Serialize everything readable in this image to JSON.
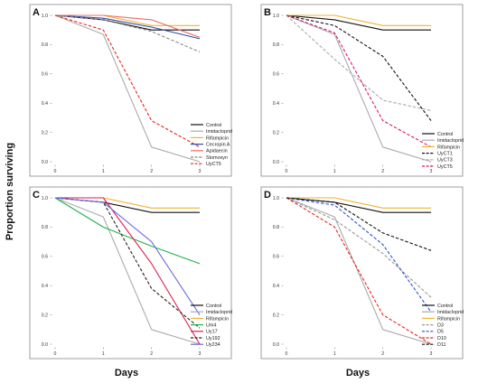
{
  "ylabel": "Proportion surviving",
  "xlabel": "Days",
  "chart_data": [
    {
      "panel": "A",
      "type": "line",
      "x": [
        0,
        1,
        2,
        3
      ],
      "xticks": [
        "0",
        "1",
        "2",
        "3"
      ],
      "yticks": [
        "0.0",
        "0.2",
        "0.4",
        "0.6",
        "0.8",
        "1.0"
      ],
      "ylim": [
        0,
        1.0
      ],
      "series": [
        {
          "name": "Control",
          "color": "#111111",
          "dash": "solid",
          "values": [
            1.0,
            0.97,
            0.9,
            0.9
          ]
        },
        {
          "name": "Imidacloprid",
          "color": "#aaaaaa",
          "dash": "solid",
          "values": [
            1.0,
            0.87,
            0.1,
            0.0
          ]
        },
        {
          "name": "Rifampicin",
          "color": "#f2b232",
          "dash": "solid",
          "values": [
            1.0,
            1.0,
            0.93,
            0.93
          ]
        },
        {
          "name": "Cecropin A",
          "color": "#2c4da8",
          "dash": "solid",
          "values": [
            1.0,
            0.98,
            0.92,
            0.84
          ]
        },
        {
          "name": "Apidaecin",
          "color": "#f06a6a",
          "dash": "solid",
          "values": [
            1.0,
            1.0,
            0.97,
            0.85
          ]
        },
        {
          "name": "Stomoxyn",
          "color": "#888888",
          "dash": "dashed",
          "values": [
            1.0,
            0.97,
            0.89,
            0.75
          ]
        },
        {
          "name": "UyCT5",
          "color": "#e8261e",
          "dash": "dashed",
          "values": [
            1.0,
            0.9,
            0.28,
            0.1
          ]
        }
      ]
    },
    {
      "panel": "B",
      "type": "line",
      "x": [
        0,
        1,
        2,
        3
      ],
      "xticks": [
        "0",
        "1",
        "2",
        "3"
      ],
      "yticks": [
        "0.0",
        "0.2",
        "0.4",
        "0.6",
        "0.8",
        "1.0"
      ],
      "ylim": [
        0,
        1.0
      ],
      "series": [
        {
          "name": "Control",
          "color": "#111111",
          "dash": "solid",
          "values": [
            1.0,
            0.97,
            0.9,
            0.9
          ]
        },
        {
          "name": "Imidacloprid",
          "color": "#aaaaaa",
          "dash": "solid",
          "values": [
            1.0,
            0.87,
            0.1,
            0.0
          ]
        },
        {
          "name": "Rifampicin",
          "color": "#f2b232",
          "dash": "solid",
          "values": [
            1.0,
            1.0,
            0.93,
            0.93
          ]
        },
        {
          "name": "UyCT1",
          "color": "#111111",
          "dash": "dashed",
          "values": [
            1.0,
            0.93,
            0.72,
            0.28
          ]
        },
        {
          "name": "UyCT3",
          "color": "#aaaaaa",
          "dash": "dashed",
          "values": [
            1.0,
            0.7,
            0.42,
            0.35
          ]
        },
        {
          "name": "UyCT5",
          "color": "#d8176e",
          "dash": "dashed",
          "values": [
            1.0,
            0.88,
            0.28,
            0.1
          ]
        }
      ]
    },
    {
      "panel": "C",
      "type": "line",
      "x": [
        0,
        1,
        2,
        3
      ],
      "xticks": [
        "0",
        "1",
        "2",
        "3"
      ],
      "yticks": [
        "0.0",
        "0.2",
        "0.4",
        "0.6",
        "0.8",
        "1.0"
      ],
      "ylim": [
        0,
        1.0
      ],
      "series": [
        {
          "name": "Control",
          "color": "#111111",
          "dash": "solid",
          "values": [
            1.0,
            0.97,
            0.9,
            0.9
          ]
        },
        {
          "name": "Imidacloprid",
          "color": "#aaaaaa",
          "dash": "solid",
          "values": [
            1.0,
            0.87,
            0.1,
            0.0
          ]
        },
        {
          "name": "Rifampicin",
          "color": "#f2b232",
          "dash": "solid",
          "values": [
            1.0,
            1.0,
            0.93,
            0.93
          ]
        },
        {
          "name": "Um4",
          "color": "#1fb14a",
          "dash": "solid",
          "values": [
            1.0,
            0.8,
            0.67,
            0.55
          ]
        },
        {
          "name": "Uy17",
          "color": "#e21a4f",
          "dash": "solid",
          "values": [
            1.0,
            1.0,
            0.55,
            0.0
          ]
        },
        {
          "name": "Uy192",
          "color": "#222222",
          "dash": "dashed",
          "values": [
            1.0,
            0.97,
            0.38,
            0.11
          ]
        },
        {
          "name": "Uy234",
          "color": "#6b6be0",
          "dash": "solid",
          "values": [
            1.0,
            0.97,
            0.7,
            0.2
          ]
        }
      ]
    },
    {
      "panel": "D",
      "type": "line",
      "x": [
        0,
        1,
        2,
        3
      ],
      "xticks": [
        "0",
        "1",
        "2",
        "3"
      ],
      "yticks": [
        "0.0",
        "0.2",
        "0.4",
        "0.6",
        "0.8",
        "1.0"
      ],
      "ylim": [
        0,
        1.0
      ],
      "series": [
        {
          "name": "Control",
          "color": "#111111",
          "dash": "solid",
          "values": [
            1.0,
            0.97,
            0.9,
            0.9
          ]
        },
        {
          "name": "Imidacloprid",
          "color": "#aaaaaa",
          "dash": "solid",
          "values": [
            1.0,
            0.87,
            0.1,
            0.0
          ]
        },
        {
          "name": "Rifampicin",
          "color": "#f2b232",
          "dash": "solid",
          "values": [
            1.0,
            1.0,
            0.93,
            0.93
          ]
        },
        {
          "name": "D3",
          "color": "#999999",
          "dash": "dashed",
          "values": [
            1.0,
            0.85,
            0.62,
            0.32
          ]
        },
        {
          "name": "D5",
          "color": "#2c4fd8",
          "dash": "dashed",
          "values": [
            1.0,
            0.95,
            0.68,
            0.22
          ]
        },
        {
          "name": "D10",
          "color": "#e8261e",
          "dash": "dashed",
          "values": [
            1.0,
            0.8,
            0.2,
            0.0
          ]
        },
        {
          "name": "D11",
          "color": "#111111",
          "dash": "dashed",
          "values": [
            1.0,
            0.97,
            0.76,
            0.64
          ]
        }
      ]
    }
  ]
}
